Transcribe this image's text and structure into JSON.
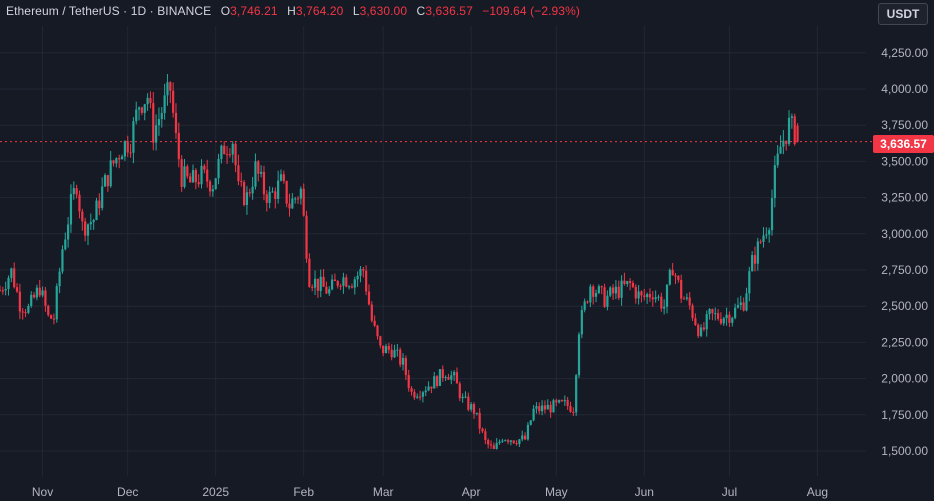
{
  "legend": {
    "symbol": "Ethereum / TetherUS · 1D · BINANCE",
    "o_label": "O",
    "o_value": "3,746.21",
    "h_label": "H",
    "h_value": "3,764.20",
    "l_label": "L",
    "l_value": "3,630.00",
    "c_label": "C",
    "c_value": "3,636.57",
    "change": "−109.64 (−2.93%)"
  },
  "unit_button": "USDT",
  "last_price_label": "3,636.57",
  "colors": {
    "background": "#161a25",
    "up": "#26a69a",
    "down": "#f23645",
    "grid": "#232734",
    "axis_text": "#b2b5be"
  },
  "chart_data": {
    "type": "candlestick",
    "y_ticks": [
      "4,250.00",
      "4,000.00",
      "3,750.00",
      "3,500.00",
      "3,250.00",
      "3,000.00",
      "2,750.00",
      "2,500.00",
      "2,250.00",
      "2,000.00",
      "1,750.00",
      "1,500.00"
    ],
    "y_tick_values": [
      4250,
      4000,
      3750,
      3500,
      3250,
      3000,
      2750,
      2500,
      2250,
      2000,
      1750,
      1500
    ],
    "ylim": [
      1400,
      4350
    ],
    "x_ticks": [
      "Nov",
      "Dec",
      "2025",
      "Feb",
      "Mar",
      "Apr",
      "May",
      "Jun",
      "Jul",
      "Aug"
    ],
    "x_tick_dates": [
      "2024-11-01",
      "2024-12-01",
      "2025-01-01",
      "2025-02-01",
      "2025-03-01",
      "2025-04-01",
      "2025-05-01",
      "2025-06-01",
      "2025-07-01",
      "2025-08-01"
    ],
    "x_range": [
      "2024-10-17",
      "2025-08-16"
    ],
    "last_price": 3636.57,
    "grid": true,
    "close_path": [
      [
        "2024-10-17",
        2610
      ],
      [
        "2024-10-21",
        2740
      ],
      [
        "2024-10-24",
        2520
      ],
      [
        "2024-10-27",
        2480
      ],
      [
        "2024-10-31",
        2630
      ],
      [
        "2024-11-03",
        2420
      ],
      [
        "2024-11-05",
        2420
      ],
      [
        "2024-11-08",
        2900
      ],
      [
        "2024-11-11",
        3200
      ],
      [
        "2024-11-13",
        3350
      ],
      [
        "2024-11-15",
        3050
      ],
      [
        "2024-11-19",
        3100
      ],
      [
        "2024-11-22",
        3300
      ],
      [
        "2024-11-25",
        3450
      ],
      [
        "2024-11-29",
        3600
      ],
      [
        "2024-12-02",
        3650
      ],
      [
        "2024-12-05",
        3900
      ],
      [
        "2024-12-08",
        3950
      ],
      [
        "2024-12-10",
        3700
      ],
      [
        "2024-12-14",
        3900
      ],
      [
        "2024-12-16",
        4000
      ],
      [
        "2024-12-18",
        3650
      ],
      [
        "2024-12-20",
        3400
      ],
      [
        "2024-12-23",
        3350
      ],
      [
        "2024-12-27",
        3400
      ],
      [
        "2024-12-31",
        3350
      ],
      [
        "2025-01-04",
        3600
      ],
      [
        "2025-01-07",
        3650
      ],
      [
        "2025-01-09",
        3300
      ],
      [
        "2025-01-12",
        3250
      ],
      [
        "2025-01-15",
        3450
      ],
      [
        "2025-01-18",
        3300
      ],
      [
        "2025-01-20",
        3250
      ],
      [
        "2025-01-24",
        3350
      ],
      [
        "2025-01-27",
        3200
      ],
      [
        "2025-01-31",
        3300
      ],
      [
        "2025-02-03",
        2700
      ],
      [
        "2025-02-06",
        2650
      ],
      [
        "2025-02-10",
        2600
      ],
      [
        "2025-02-14",
        2700
      ],
      [
        "2025-02-18",
        2680
      ],
      [
        "2025-02-22",
        2750
      ],
      [
        "2025-02-25",
        2400
      ],
      [
        "2025-02-28",
        2200
      ],
      [
        "2025-03-04",
        2200
      ],
      [
        "2025-03-08",
        2100
      ],
      [
        "2025-03-11",
        1900
      ],
      [
        "2025-03-15",
        1930
      ],
      [
        "2025-03-19",
        1980
      ],
      [
        "2025-03-23",
        2050
      ],
      [
        "2025-03-26",
        2000
      ],
      [
        "2025-03-29",
        1850
      ],
      [
        "2025-04-02",
        1780
      ],
      [
        "2025-04-06",
        1560
      ],
      [
        "2025-04-09",
        1500
      ],
      [
        "2025-04-12",
        1600
      ],
      [
        "2025-04-16",
        1580
      ],
      [
        "2025-04-20",
        1580
      ],
      [
        "2025-04-23",
        1780
      ],
      [
        "2025-04-28",
        1800
      ],
      [
        "2025-05-04",
        1820
      ],
      [
        "2025-05-07",
        1800
      ],
      [
        "2025-05-09",
        2350
      ],
      [
        "2025-05-13",
        2650
      ],
      [
        "2025-05-18",
        2550
      ],
      [
        "2025-05-22",
        2600
      ],
      [
        "2025-05-27",
        2650
      ],
      [
        "2025-05-31",
        2550
      ],
      [
        "2025-06-04",
        2600
      ],
      [
        "2025-06-08",
        2500
      ],
      [
        "2025-06-11",
        2780
      ],
      [
        "2025-06-14",
        2580
      ],
      [
        "2025-06-17",
        2500
      ],
      [
        "2025-06-21",
        2300
      ],
      [
        "2025-06-24",
        2430
      ],
      [
        "2025-06-28",
        2430
      ],
      [
        "2025-07-02",
        2450
      ],
      [
        "2025-07-06",
        2530
      ],
      [
        "2025-07-09",
        2800
      ],
      [
        "2025-07-12",
        2950
      ],
      [
        "2025-07-15",
        3100
      ],
      [
        "2025-07-17",
        3400
      ],
      [
        "2025-07-19",
        3600
      ],
      [
        "2025-07-22",
        3750
      ],
      [
        "2025-07-24",
        3700
      ],
      [
        "2025-07-25",
        3636
      ]
    ]
  }
}
